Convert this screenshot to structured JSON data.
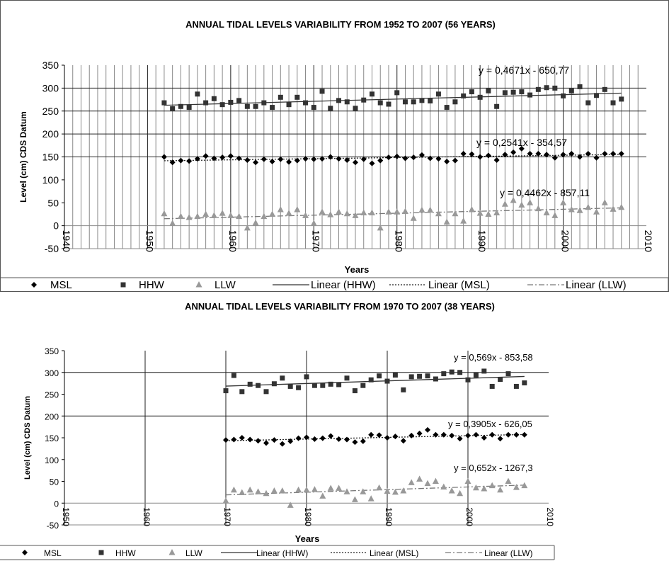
{
  "chart_data": [
    {
      "type": "scatter",
      "title": "ANNUAL TIDAL LEVELS VARIABILITY FROM 1952 TO 2007 (56 YEARS)",
      "xlabel": "Years",
      "ylabel": "Level (cm) CDS Datum",
      "xlim": [
        1940,
        2010
      ],
      "ylim": [
        -50,
        350
      ],
      "xticks": [
        "1940",
        "1950",
        "1960",
        "1970",
        "1980",
        "1990",
        "2000",
        "2010"
      ],
      "yticks": [
        "350",
        "300",
        "250",
        "200",
        "150",
        "100",
        "50",
        "0",
        "-50"
      ],
      "grid": "vertical lines every year, horizontal lines at 150, 200, 250, 300",
      "legend_position": "bottom",
      "x": [
        1952,
        1953,
        1954,
        1955,
        1956,
        1957,
        1958,
        1959,
        1960,
        1961,
        1962,
        1963,
        1964,
        1965,
        1966,
        1967,
        1968,
        1969,
        1970,
        1971,
        1972,
        1973,
        1974,
        1975,
        1976,
        1977,
        1978,
        1979,
        1980,
        1981,
        1982,
        1983,
        1984,
        1985,
        1986,
        1987,
        1988,
        1989,
        1990,
        1991,
        1992,
        1993,
        1994,
        1995,
        1996,
        1997,
        1998,
        1999,
        2000,
        2001,
        2002,
        2003,
        2004,
        2005,
        2006,
        2007
      ],
      "series": [
        {
          "name": "MSL",
          "marker": "diamond",
          "color": "#000000",
          "values": [
            150,
            138,
            142,
            141,
            146,
            152,
            147,
            149,
            152,
            147,
            143,
            138,
            145,
            140,
            145,
            139,
            142,
            146,
            145,
            146,
            150,
            146,
            143,
            138,
            145,
            136,
            142,
            149,
            151,
            147,
            149,
            154,
            147,
            146,
            140,
            142,
            157,
            156,
            150,
            153,
            143,
            155,
            160,
            168,
            157,
            157,
            155,
            148,
            155,
            157,
            150,
            157,
            148,
            157,
            157,
            157
          ]
        },
        {
          "name": "HHW",
          "marker": "square",
          "color": "#333333",
          "values": [
            268,
            255,
            260,
            258,
            287,
            268,
            277,
            264,
            269,
            273,
            260,
            260,
            268,
            258,
            280,
            264,
            280,
            268,
            258,
            293,
            256,
            273,
            270,
            256,
            274,
            287,
            268,
            265,
            290,
            270,
            270,
            273,
            272,
            287,
            258,
            270,
            283,
            292,
            280,
            294,
            260,
            290,
            291,
            292,
            285,
            297,
            301,
            300,
            283,
            294,
            303,
            268,
            284,
            297,
            268,
            276
          ]
        },
        {
          "name": "LLW",
          "marker": "triangle",
          "color": "#999999",
          "values": [
            26,
            5,
            20,
            18,
            20,
            25,
            22,
            27,
            22,
            20,
            -5,
            6,
            20,
            25,
            35,
            27,
            35,
            22,
            5,
            30,
            24,
            30,
            26,
            22,
            28,
            28,
            -5,
            30,
            30,
            31,
            16,
            34,
            34,
            26,
            8,
            26,
            10,
            35,
            27,
            25,
            28,
            47,
            55,
            45,
            50,
            37,
            28,
            22,
            50,
            35,
            33,
            40,
            30,
            50,
            36,
            40
          ]
        },
        {
          "name": "Linear (HHW)",
          "style": "solid",
          "trend": "y = 0,4671x - 650,77"
        },
        {
          "name": "Linear (MSL)",
          "style": "dotted",
          "trend": "y = 0,2541x - 354,57"
        },
        {
          "name": "Linear (LLW)",
          "style": "dash-dot",
          "trend": "y = 0,4462x - 857,11"
        }
      ],
      "fit_range": [
        1952,
        2007
      ]
    },
    {
      "type": "scatter",
      "title": "ANNUAL TIDAL LEVELS VARIABILITY FROM 1970 TO 2007 (38 YEARS)",
      "xlabel": "Years",
      "ylabel": "Level (cm) CDS Datum",
      "xlim": [
        1950,
        2010
      ],
      "ylim": [
        -50,
        350
      ],
      "xticks": [
        "1950",
        "1960",
        "1970",
        "1980",
        "1990",
        "2000",
        "2010"
      ],
      "yticks": [
        "350",
        "300",
        "250",
        "200",
        "150",
        "100",
        "50",
        "0",
        "-50"
      ],
      "grid": "vertical lines every 10 years, horizontal lines at 200, 300",
      "legend_position": "bottom",
      "x": [
        1970,
        1971,
        1972,
        1973,
        1974,
        1975,
        1976,
        1977,
        1978,
        1979,
        1980,
        1981,
        1982,
        1983,
        1984,
        1985,
        1986,
        1987,
        1988,
        1989,
        1990,
        1991,
        1992,
        1993,
        1994,
        1995,
        1996,
        1997,
        1998,
        1999,
        2000,
        2001,
        2002,
        2003,
        2004,
        2005,
        2006,
        2007
      ],
      "series": [
        {
          "name": "MSL",
          "marker": "diamond",
          "color": "#000000",
          "values": [
            145,
            146,
            150,
            146,
            143,
            138,
            145,
            136,
            142,
            149,
            151,
            147,
            149,
            154,
            147,
            146,
            140,
            142,
            157,
            156,
            150,
            153,
            143,
            155,
            160,
            168,
            157,
            157,
            155,
            148,
            155,
            157,
            150,
            157,
            148,
            157,
            157,
            157
          ]
        },
        {
          "name": "HHW",
          "marker": "square",
          "color": "#333333",
          "values": [
            258,
            293,
            256,
            273,
            270,
            256,
            274,
            287,
            268,
            265,
            290,
            270,
            270,
            273,
            272,
            287,
            258,
            270,
            283,
            292,
            280,
            294,
            260,
            290,
            291,
            292,
            285,
            297,
            301,
            300,
            283,
            294,
            303,
            268,
            284,
            297,
            268,
            276
          ]
        },
        {
          "name": "LLW",
          "marker": "triangle",
          "color": "#999999",
          "values": [
            5,
            30,
            24,
            30,
            26,
            22,
            28,
            28,
            -5,
            30,
            30,
            31,
            16,
            34,
            34,
            26,
            8,
            26,
            10,
            35,
            27,
            25,
            28,
            47,
            55,
            45,
            50,
            37,
            28,
            22,
            50,
            35,
            33,
            40,
            30,
            50,
            36,
            40
          ]
        },
        {
          "name": "Linear (HHW)",
          "style": "solid",
          "trend": "y = 0,569x - 853,58"
        },
        {
          "name": "Linear (MSL)",
          "style": "dotted",
          "trend": "y = 0,3905x - 626,05"
        },
        {
          "name": "Linear (LLW)",
          "style": "dash-dot",
          "trend": "y = 0,652x - 1267,3"
        }
      ],
      "fit_range": [
        1970,
        2007
      ]
    }
  ]
}
